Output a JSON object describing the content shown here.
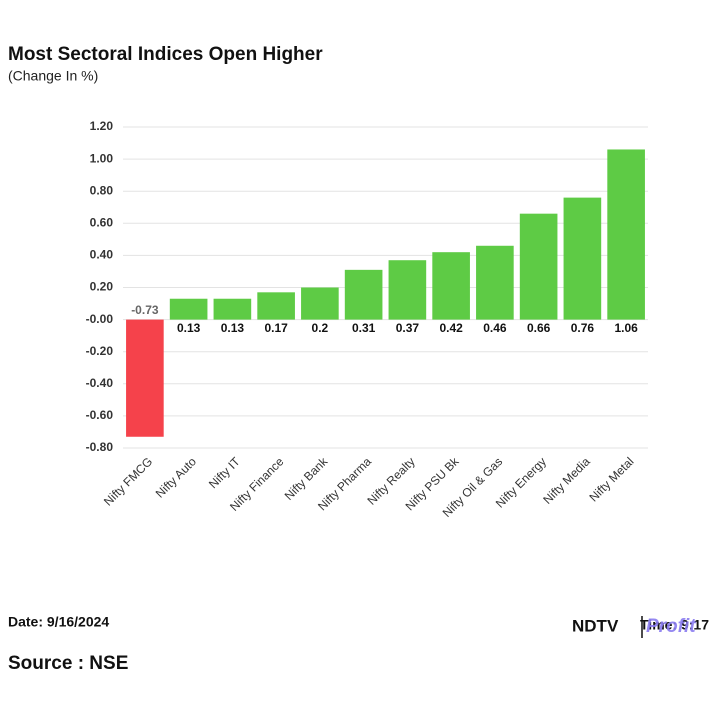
{
  "chart_data": {
    "type": "bar",
    "title": "Most Sectoral Indices Open Higher",
    "subtitle": "(Change In %)",
    "categories": [
      "Nifty FMCG",
      "Nifty Auto",
      "Nifty IT",
      "Nifty Finance",
      "Nifty Bank",
      "Nifty Pharma",
      "Nifty Realty",
      "Nifty PSU Bk",
      "Nifty Oil & Gas",
      "Nifty Energy",
      "Nifty Media",
      "Nifty Metal"
    ],
    "values": [
      -0.73,
      0.13,
      0.13,
      0.17,
      0.2,
      0.31,
      0.37,
      0.42,
      0.46,
      0.66,
      0.76,
      1.06
    ],
    "positive_color": "#5ecb45",
    "negative_color": "#f5424b",
    "ylim": [
      -0.8,
      1.2
    ],
    "yticks": [
      {
        "value": -0.8,
        "label": "-0.80"
      },
      {
        "value": -0.6,
        "label": "-0.60"
      },
      {
        "value": -0.4,
        "label": "-0.40"
      },
      {
        "value": -0.2,
        "label": "-0.20"
      },
      {
        "value": 0,
        "label": "-0.00"
      },
      {
        "value": 0.2,
        "label": "0.20"
      },
      {
        "value": 0.4,
        "label": "0.40"
      },
      {
        "value": 0.6,
        "label": "0.60"
      },
      {
        "value": 0.8,
        "label": "0.80"
      },
      {
        "value": 1.0,
        "label": "1.00"
      },
      {
        "value": 1.2,
        "label": "1.20"
      }
    ],
    "grid": true
  },
  "footer": {
    "date": "Date: 9/16/2024",
    "source": "Source : NSE",
    "time": "Time: 9:17",
    "logo_left": "NDTV",
    "logo_right": "Profit"
  }
}
